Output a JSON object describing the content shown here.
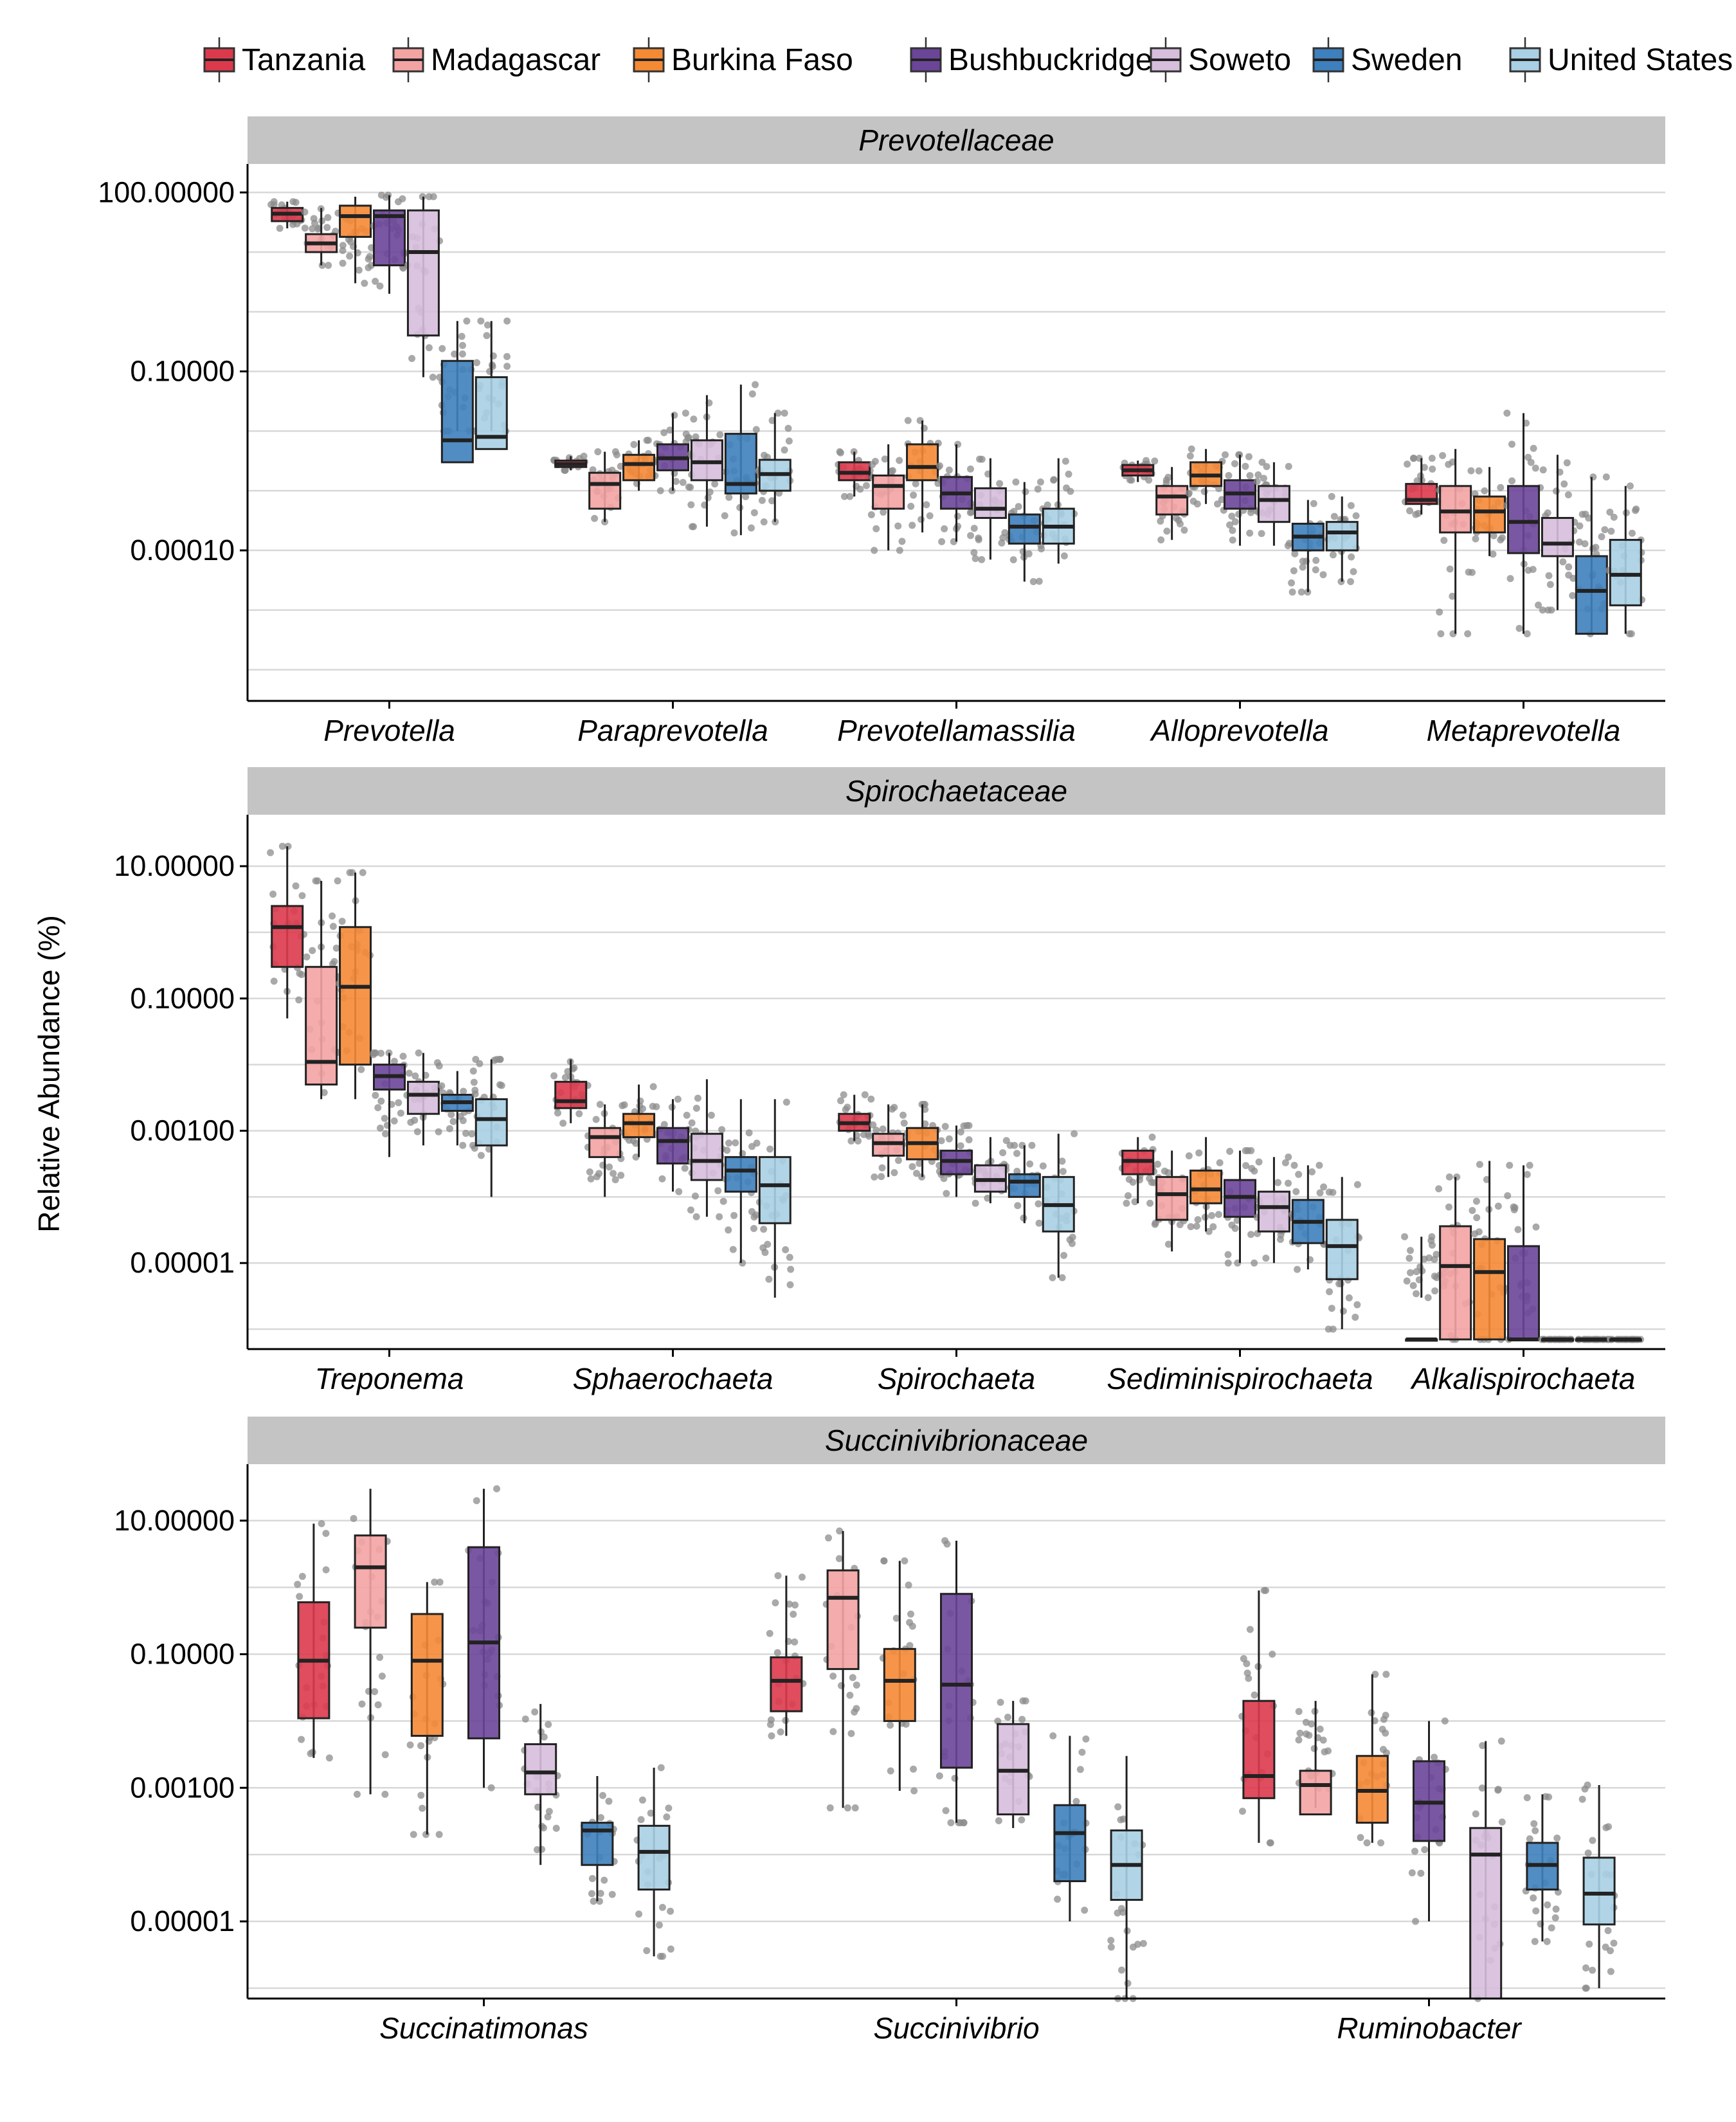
{
  "colors": {
    "Tanzania": "#dc3a4c",
    "Madagascar": "#f4a3a3",
    "Burkina Faso": "#f58a35",
    "Bushbuckridge": "#6b4598",
    "Soweto": "#d6bedc",
    "Sweden": "#3e7fbd",
    "United States": "#a9d0e4",
    "strip_bg": "#c4c4c4",
    "grid": "#d8d8d8",
    "jitter": "#8c8c8c"
  },
  "chart_data": {
    "type": "boxplot",
    "y_scale": "log10",
    "ylabel": "Relative Abundance (%)",
    "legend": {
      "position": "top",
      "entries": [
        "Tanzania",
        "Madagascar",
        "Burkina Faso",
        "Bushbuckridge",
        "Soweto",
        "Sweden",
        "United States"
      ]
    },
    "panels": [
      {
        "title": "Prevotellaceae",
        "ylim": [
          3e-07,
          300
        ],
        "yticks": [
          {
            "value": 100,
            "label": "100.00000"
          },
          {
            "value": 0.1,
            "label": "0.10000"
          },
          {
            "value": 0.0001,
            "label": "0.00010"
          }
        ],
        "categories": [
          "Prevotella",
          "Paraprevotella",
          "Prevotellamassilia",
          "Alloprevotella",
          "Metaprevotella"
        ],
        "series": [
          {
            "name": "Tanzania",
            "boxes": [
              [
                25,
                33,
                44,
                55,
                70
              ],
              [
                0.0022,
                0.0025,
                0.0028,
                0.0032,
                0.0038
              ],
              [
                0.0008,
                0.0015,
                0.002,
                0.003,
                0.0045
              ],
              [
                0.0014,
                0.0018,
                0.0022,
                0.0027,
                0.0032
              ],
              [
                0.0004,
                0.0006,
                0.0007,
                0.0013,
                0.0035
              ]
            ]
          },
          {
            "name": "Madagascar",
            "boxes": [
              [
                6,
                10,
                14,
                20,
                55
              ],
              [
                0.0003,
                0.0005,
                0.0013,
                0.002,
                0.0045
              ],
              [
                0.0001,
                0.0005,
                0.0012,
                0.0018,
                0.006
              ],
              [
                0.00015,
                0.0004,
                0.0008,
                0.0012,
                0.0025
              ],
              [
                4e-06,
                0.0002,
                0.00045,
                0.0012,
                0.005
              ]
            ]
          },
          {
            "name": "Burkina Faso",
            "boxes": [
              [
                3,
                18,
                40,
                60,
                85
              ],
              [
                0.001,
                0.0015,
                0.0028,
                0.004,
                0.007
              ],
              [
                0.0002,
                0.0015,
                0.0025,
                0.006,
                0.015
              ],
              [
                0.0006,
                0.0012,
                0.0018,
                0.003,
                0.005
              ],
              [
                8e-05,
                0.0002,
                0.00045,
                0.0008,
                0.0025
              ]
            ]
          },
          {
            "name": "Bushbuckridge",
            "boxes": [
              [
                2,
                6,
                40,
                50,
                90
              ],
              [
                0.001,
                0.0022,
                0.0035,
                0.006,
                0.02
              ],
              [
                0.00014,
                0.0005,
                0.0009,
                0.0017,
                0.006
              ],
              [
                0.00012,
                0.0005,
                0.0009,
                0.0015,
                0.004
              ],
              [
                4e-06,
                9e-05,
                0.0003,
                0.0012,
                0.02
              ]
            ]
          },
          {
            "name": "Soweto",
            "boxes": [
              [
                0.08,
                0.4,
                10,
                50,
                85
              ],
              [
                0.00025,
                0.0015,
                0.003,
                0.007,
                0.04
              ],
              [
                7e-05,
                0.00035,
                0.0005,
                0.0011,
                0.0035
              ],
              [
                0.00012,
                0.0003,
                0.0007,
                0.0012,
                0.003
              ],
              [
                1e-05,
                8e-05,
                0.00013,
                0.00035,
                0.004
              ]
            ]
          },
          {
            "name": "Sweden",
            "boxes": [
              [
                0.01,
                0.003,
                0.007,
                0.15,
                0.7
              ],
              [
                0.00018,
                0.0009,
                0.0013,
                0.009,
                0.06
              ],
              [
                3e-05,
                0.00013,
                0.00025,
                0.0004,
                0.0014
              ],
              [
                2e-05,
                0.0001,
                0.00017,
                0.00028,
                0.0007
              ],
              [
                4e-06,
                4e-06,
                2.1e-05,
                8e-05,
                0.0017
              ]
            ]
          },
          {
            "name": "United States",
            "boxes": [
              [
                0.01,
                0.005,
                0.008,
                0.08,
                0.7
              ],
              [
                0.0003,
                0.001,
                0.0019,
                0.0033,
                0.02
              ],
              [
                6e-05,
                0.00013,
                0.00025,
                0.0005,
                0.0035
              ],
              [
                3e-05,
                0.0001,
                0.0002,
                0.0003,
                0.0008
              ],
              [
                4e-06,
                1.2e-05,
                3.9e-05,
                0.00015,
                0.0012
              ]
            ]
          }
        ]
      },
      {
        "title": "Spirochaetaceae",
        "ylim": [
          5e-07,
          60
        ],
        "yticks": [
          {
            "value": 10,
            "label": "10.00000"
          },
          {
            "value": 0.1,
            "label": "0.10000"
          },
          {
            "value": 0.001,
            "label": "0.00100"
          },
          {
            "value": 1e-05,
            "label": "0.00001"
          }
        ],
        "categories": [
          "Treponema",
          "Sphaerochaeta",
          "Spirochaeta",
          "Sediminispirochaeta",
          "Alkalispirochaeta"
        ],
        "series": [
          {
            "name": "Tanzania",
            "boxes": [
              [
                0.05,
                0.3,
                1.2,
                2.5,
                20
              ],
              [
                0.0013,
                0.0022,
                0.0028,
                0.0055,
                0.012
              ],
              [
                0.0007,
                0.001,
                0.0013,
                0.0018,
                0.0035
              ],
              [
                8e-05,
                0.00022,
                0.00035,
                0.0005,
                0.0008
              ],
              [
                3e-06,
                7e-07,
                7e-07,
                7e-07,
                2.5e-05
              ]
            ]
          },
          {
            "name": "Madagascar",
            "boxes": [
              [
                0.003,
                0.005,
                0.011,
                0.3,
                6
              ],
              [
                0.0001,
                0.0004,
                0.0008,
                0.0011,
                0.0025
              ],
              [
                0.0002,
                0.00042,
                0.00065,
                0.0009,
                0.0025
              ],
              [
                1.5e-05,
                4.5e-05,
                0.00011,
                0.0002,
                0.0005
              ],
              [
                7e-07,
                7e-07,
                9e-06,
                3.6e-05,
                0.0002
              ]
            ]
          },
          {
            "name": "Burkina Faso",
            "boxes": [
              [
                0.003,
                0.01,
                0.15,
                1.2,
                8
              ],
              [
                0.0004,
                0.0008,
                0.0013,
                0.0018,
                0.005
              ],
              [
                0.0002,
                0.00037,
                0.00065,
                0.0011,
                0.0025
              ],
              [
                3e-05,
                8e-05,
                0.00013,
                0.00025,
                0.0008
              ],
              [
                7e-07,
                7e-07,
                7.3e-06,
                2.3e-05,
                0.00035
              ]
            ]
          },
          {
            "name": "Bushbuckridge",
            "boxes": [
              [
                0.0004,
                0.0042,
                0.0067,
                0.01,
                0.015
              ],
              [
                0.00012,
                0.00032,
                0.0007,
                0.0011,
                0.003
              ],
              [
                0.0001,
                0.00022,
                0.00035,
                0.0005,
                0.0012
              ],
              [
                1e-05,
                5e-05,
                0.0001,
                0.00018,
                0.0005
              ],
              [
                7e-07,
                7e-07,
                7e-07,
                1.8e-05,
                0.0003
              ]
            ]
          },
          {
            "name": "Soweto",
            "boxes": [
              [
                0.0006,
                0.0018,
                0.0035,
                0.0055,
                0.015
              ],
              [
                5e-05,
                0.00018,
                0.00035,
                0.0009,
                0.006
              ],
              [
                8e-05,
                0.00012,
                0.00018,
                0.0003,
                0.0008
              ],
              [
                1e-05,
                3e-05,
                7e-05,
                0.00012,
                0.0004
              ],
              [
                7e-07,
                7e-07,
                7e-07,
                7e-07,
                7e-07
              ]
            ]
          },
          {
            "name": "Sweden",
            "boxes": [
              [
                0.0006,
                0.002,
                0.0027,
                0.0035,
                0.008
              ],
              [
                1e-05,
                0.00012,
                0.00025,
                0.0004,
                0.003
              ],
              [
                4e-05,
                0.0001,
                0.00017,
                0.00022,
                0.0006
              ],
              [
                8e-06,
                2e-05,
                4.2e-05,
                9e-05,
                0.0003
              ],
              [
                7e-07,
                7e-07,
                7e-07,
                7e-07,
                7e-07
              ]
            ]
          },
          {
            "name": "United States",
            "boxes": [
              [
                0.0001,
                0.0006,
                0.0015,
                0.003,
                0.012
              ],
              [
                3e-06,
                4e-05,
                0.00015,
                0.0004,
                0.003
              ],
              [
                6e-06,
                3e-05,
                7.5e-05,
                0.0002,
                0.0009
              ],
              [
                1e-06,
                5.7e-06,
                1.8e-05,
                4.5e-05,
                0.0002
              ],
              [
                7e-07,
                7e-07,
                7e-07,
                7e-07,
                7e-07
              ]
            ]
          }
        ]
      },
      {
        "title": "Succinivibrionaceae",
        "ylim": [
          7e-07,
          70
        ],
        "yticks": [
          {
            "value": 10,
            "label": "10.00000"
          },
          {
            "value": 0.1,
            "label": "0.10000"
          },
          {
            "value": 0.001,
            "label": "0.00100"
          },
          {
            "value": 1e-05,
            "label": "0.00001"
          }
        ],
        "categories": [
          "Succinatimonas",
          "Succinivibrio",
          "Ruminobacter"
        ],
        "series": [
          {
            "name": "Tanzania",
            "boxes": [
              [
                0.0028,
                0.011,
                0.08,
                0.6,
                9
              ],
              [
                0.006,
                0.014,
                0.04,
                0.09,
                1.5
              ],
              [
                0.00015,
                0.0007,
                0.0015,
                0.02,
                0.9
              ]
            ]
          },
          {
            "name": "Madagascar",
            "boxes": [
              [
                0.0008,
                0.25,
                2,
                6,
                30
              ],
              [
                0.0005,
                0.06,
                0.7,
                1.8,
                7
              ],
              [
                0.0005,
                0.0004,
                0.0011,
                0.0018,
                0.02
              ]
            ]
          },
          {
            "name": "Burkina Faso",
            "boxes": [
              [
                0.0002,
                0.006,
                0.08,
                0.4,
                1.2
              ],
              [
                0.0009,
                0.01,
                0.04,
                0.12,
                2.5
              ],
              [
                0.00015,
                0.0003,
                0.0009,
                0.003,
                0.05
              ]
            ]
          },
          {
            "name": "Bushbuckridge",
            "boxes": [
              [
                0.001,
                0.0055,
                0.15,
                4,
                30
              ],
              [
                0.0003,
                0.002,
                0.035,
                0.8,
                5
              ],
              [
                1e-05,
                0.00016,
                0.0006,
                0.0025,
                0.01
              ]
            ]
          },
          {
            "name": "Soweto",
            "boxes": [
              [
                7e-05,
                0.0008,
                0.0017,
                0.0045,
                0.018
              ],
              [
                0.00025,
                0.0004,
                0.0018,
                0.009,
                0.02
              ],
              [
                7e-07,
                7e-07,
                0.0001,
                0.00025,
                0.005
              ]
            ]
          },
          {
            "name": "Sweden",
            "boxes": [
              [
                2e-05,
                7e-05,
                0.00023,
                0.0003,
                0.0015
              ],
              [
                1e-05,
                4e-05,
                0.00021,
                0.00055,
                0.006
              ],
              [
                5e-06,
                3e-05,
                7e-05,
                0.00015,
                0.0008
              ]
            ]
          },
          {
            "name": "United States",
            "boxes": [
              [
                3e-06,
                3e-05,
                0.00011,
                0.00027,
                0.002
              ],
              [
                7e-07,
                2.1e-05,
                7e-05,
                0.00023,
                0.003
              ],
              [
                1e-06,
                9e-06,
                2.6e-05,
                9e-05,
                0.0011
              ]
            ]
          }
        ]
      }
    ]
  }
}
